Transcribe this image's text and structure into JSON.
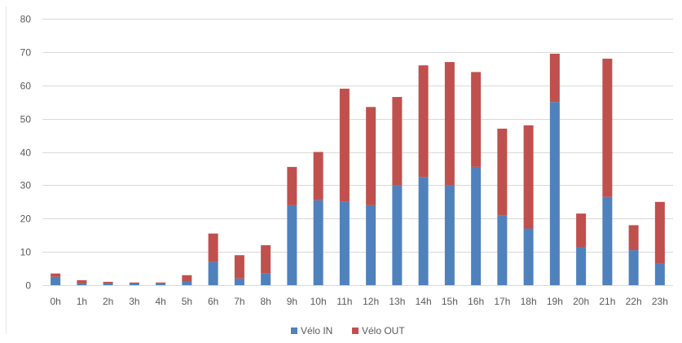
{
  "chart_data": {
    "type": "bar",
    "stacked": true,
    "title": "",
    "xlabel": "",
    "ylabel": "",
    "ylim": [
      0,
      80
    ],
    "yticks": [
      0,
      10,
      20,
      30,
      40,
      50,
      60,
      70,
      80
    ],
    "grid": true,
    "legend_position": "bottom",
    "categories": [
      "0h",
      "1h",
      "2h",
      "3h",
      "4h",
      "5h",
      "6h",
      "7h",
      "8h",
      "9h",
      "10h",
      "11h",
      "12h",
      "13h",
      "14h",
      "15h",
      "16h",
      "17h",
      "18h",
      "19h",
      "20h",
      "21h",
      "22h",
      "23h"
    ],
    "series": [
      {
        "name": "Vélo IN",
        "color": "#4f81bd",
        "values": [
          2.5,
          0.5,
          0.5,
          0.5,
          0.5,
          1,
          7,
          2,
          3.5,
          24,
          25.5,
          25,
          24,
          30,
          32.5,
          30,
          35.5,
          21,
          17,
          55,
          11.5,
          26.5,
          10.5,
          6.5
        ]
      },
      {
        "name": "Vélo OUT",
        "color": "#c0504d",
        "values": [
          1,
          1,
          0.5,
          0.3,
          0.3,
          2,
          8.5,
          7,
          8.5,
          11.5,
          14.5,
          34,
          29.5,
          26.5,
          33.5,
          37,
          28.5,
          26,
          31,
          14.5,
          10,
          41.5,
          7.5,
          18.5
        ]
      }
    ]
  }
}
